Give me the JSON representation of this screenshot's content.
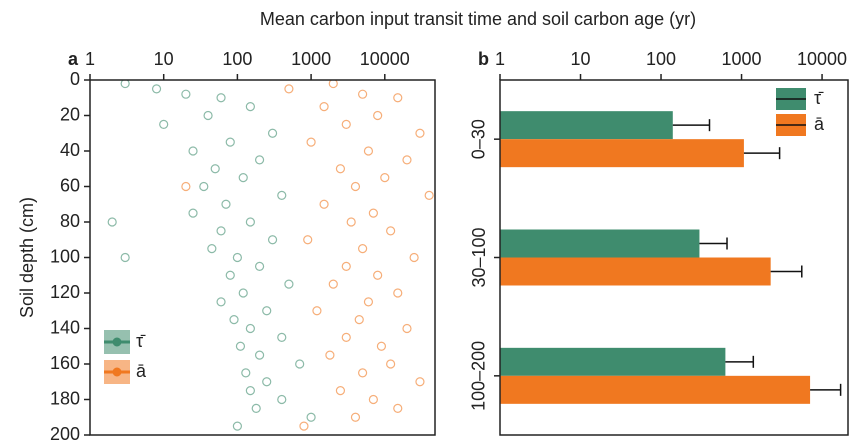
{
  "title": "Mean carbon input transit time and soil carbon age (yr)",
  "chart_data": [
    {
      "type": "scatter",
      "panel_label": "a",
      "ylabel": "Soil depth (cm)",
      "xscale": "log",
      "xlim": [
        1,
        48000
      ],
      "xticks": [
        1,
        10,
        100,
        1000,
        10000
      ],
      "ylim": [
        0,
        200
      ],
      "y_inverted": true,
      "yticks": [
        0,
        20,
        40,
        60,
        80,
        100,
        120,
        140,
        160,
        180,
        200
      ],
      "legend": "lower left",
      "series": [
        {
          "name": "τ̄",
          "color": "#3f8c6e",
          "x": [
            3,
            8,
            20,
            60,
            150,
            40,
            10,
            300,
            80,
            25,
            200,
            50,
            120,
            35,
            400,
            70,
            25,
            150,
            60,
            300,
            45,
            100,
            200,
            80,
            500,
            120,
            60,
            250,
            90,
            150,
            400,
            110,
            200,
            700,
            130,
            250,
            150,
            400,
            180,
            1000,
            100,
            2,
            3
          ],
          "values": [
            2,
            5,
            8,
            10,
            15,
            20,
            25,
            30,
            35,
            40,
            45,
            50,
            55,
            60,
            65,
            70,
            75,
            80,
            85,
            90,
            95,
            100,
            105,
            110,
            115,
            120,
            125,
            130,
            135,
            140,
            145,
            150,
            155,
            160,
            165,
            170,
            175,
            180,
            185,
            190,
            195,
            80,
            100
          ]
        },
        {
          "name": "ā",
          "color": "#f07820",
          "x": [
            2000,
            500,
            5000,
            15000,
            1500,
            8000,
            3000,
            30000,
            1000,
            6000,
            20000,
            2500,
            10000,
            4000,
            40000,
            1500,
            7000,
            3500,
            12000,
            900,
            5000,
            25000,
            3000,
            8000,
            2000,
            15000,
            6000,
            1200,
            4500,
            20000,
            3000,
            9000,
            1800,
            12000,
            5000,
            30000,
            2500,
            7000,
            15000,
            4000,
            800,
            20
          ],
          "values": [
            2,
            5,
            8,
            10,
            15,
            20,
            25,
            30,
            35,
            40,
            45,
            50,
            55,
            60,
            65,
            70,
            75,
            80,
            85,
            90,
            95,
            100,
            105,
            110,
            115,
            120,
            125,
            130,
            135,
            140,
            145,
            150,
            155,
            160,
            165,
            170,
            175,
            180,
            185,
            190,
            195,
            60
          ]
        }
      ]
    },
    {
      "type": "bar",
      "orientation": "horizontal",
      "panel_label": "b",
      "xscale": "log",
      "xlim": [
        1,
        21000
      ],
      "xticks": [
        1,
        10,
        100,
        1000,
        10000
      ],
      "categories": [
        "0–30",
        "30–100",
        "100–200"
      ],
      "legend": "upper right",
      "series": [
        {
          "name": "τ̄",
          "color": "#3f8c6e",
          "values": [
            140,
            300,
            630
          ],
          "errors": [
            260,
            360,
            770
          ]
        },
        {
          "name": "ā",
          "color": "#f07820",
          "values": [
            1070,
            2300,
            7100
          ],
          "errors": [
            1900,
            3300,
            9900
          ]
        }
      ]
    }
  ]
}
